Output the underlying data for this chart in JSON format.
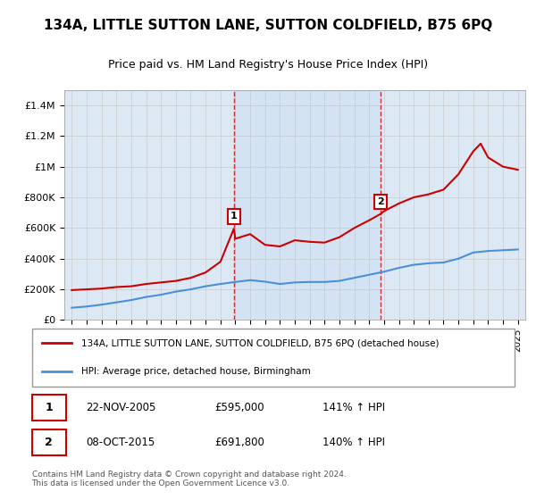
{
  "title": "134A, LITTLE SUTTON LANE, SUTTON COLDFIELD, B75 6PQ",
  "subtitle": "Price paid vs. HM Land Registry's House Price Index (HPI)",
  "legend_line1": "134A, LITTLE SUTTON LANE, SUTTON COLDFIELD, B75 6PQ (detached house)",
  "legend_line2": "HPI: Average price, detached house, Birmingham",
  "footer": "Contains HM Land Registry data © Crown copyright and database right 2024.\nThis data is licensed under the Open Government Licence v3.0.",
  "sale1_label": "1",
  "sale1_date": "22-NOV-2005",
  "sale1_price": "£595,000",
  "sale1_hpi": "141% ↑ HPI",
  "sale1_year": 2005.9,
  "sale2_label": "2",
  "sale2_date": "08-OCT-2015",
  "sale2_price": "£691,800",
  "sale2_hpi": "140% ↑ HPI",
  "sale2_year": 2015.77,
  "red_color": "#cc0000",
  "blue_color": "#4a90d9",
  "background_color": "#dce9f5",
  "plot_bg": "#ffffff",
  "grid_color": "#cccccc",
  "yticks": [
    0,
    200000,
    400000,
    600000,
    800000,
    1000000,
    1200000,
    1400000
  ],
  "ylabels": [
    "£0",
    "£200K",
    "£400K",
    "£600K",
    "£800K",
    "£1M",
    "£1.2M",
    "£1.4M"
  ],
  "ylim": [
    0,
    1500000
  ],
  "red_x": [
    1995,
    1996,
    1997,
    1998,
    1999,
    2000,
    2001,
    2002,
    2003,
    2004,
    2005,
    2005.9,
    2006,
    2007,
    2008,
    2009,
    2010,
    2011,
    2012,
    2013,
    2014,
    2015,
    2015.77,
    2016,
    2017,
    2018,
    2019,
    2020,
    2021,
    2022,
    2022.5,
    2023,
    2024,
    2025
  ],
  "red_y": [
    195000,
    200000,
    205000,
    215000,
    220000,
    235000,
    245000,
    255000,
    275000,
    310000,
    380000,
    595000,
    530000,
    560000,
    490000,
    480000,
    520000,
    510000,
    505000,
    540000,
    600000,
    650000,
    691800,
    710000,
    760000,
    800000,
    820000,
    850000,
    950000,
    1100000,
    1150000,
    1060000,
    1000000,
    980000
  ],
  "blue_x": [
    1995,
    1996,
    1997,
    1998,
    1999,
    2000,
    2001,
    2002,
    2003,
    2004,
    2005,
    2006,
    2007,
    2008,
    2009,
    2010,
    2011,
    2012,
    2013,
    2014,
    2015,
    2016,
    2017,
    2018,
    2019,
    2020,
    2021,
    2022,
    2023,
    2024,
    2025
  ],
  "blue_y": [
    80000,
    88000,
    100000,
    115000,
    130000,
    150000,
    165000,
    185000,
    200000,
    220000,
    235000,
    248000,
    260000,
    250000,
    235000,
    245000,
    248000,
    248000,
    255000,
    275000,
    295000,
    315000,
    340000,
    360000,
    370000,
    375000,
    400000,
    440000,
    450000,
    455000,
    460000
  ]
}
